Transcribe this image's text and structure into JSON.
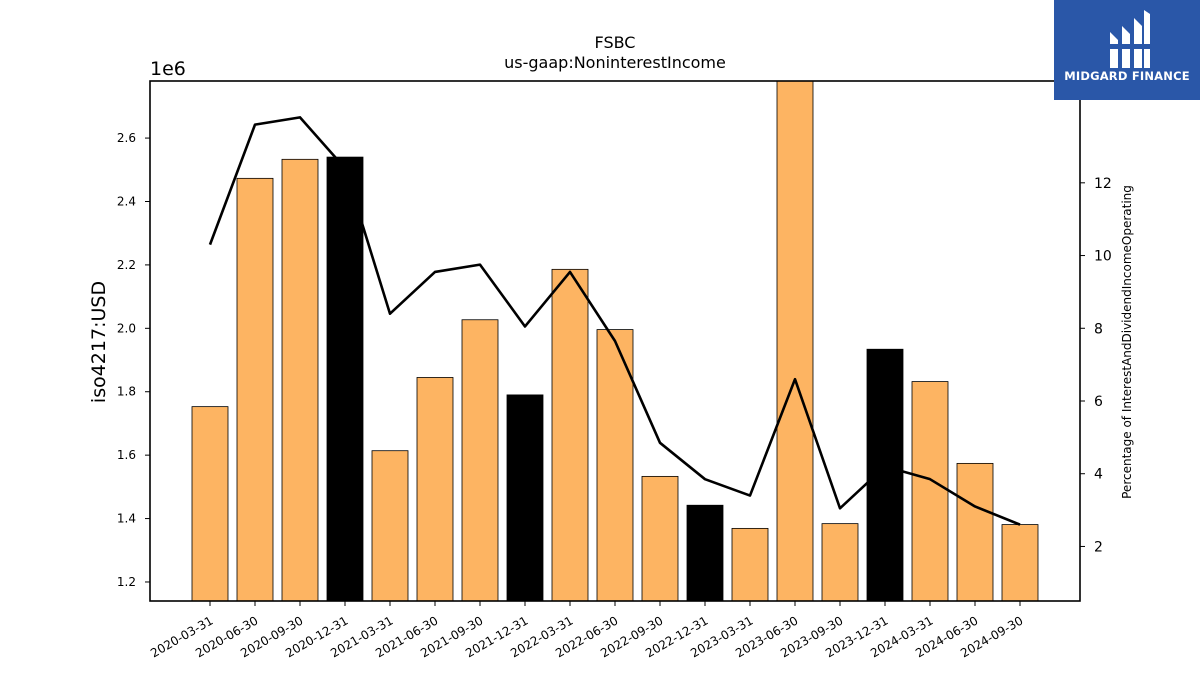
{
  "chart_data": {
    "type": "bar",
    "title": "FSBC",
    "subtitle": "us-gaap:NoninterestIncome",
    "ylabel": "iso4217:USD",
    "y_offset_label": "1e6",
    "y2label": "Percentage of InterestAndDividendIncomeOperating",
    "categories": [
      "2020-03-31",
      "2020-06-30",
      "2020-09-30",
      "2020-12-31",
      "2021-03-31",
      "2021-06-30",
      "2021-09-30",
      "2021-12-31",
      "2022-03-31",
      "2022-06-30",
      "2022-09-30",
      "2022-12-31",
      "2023-03-31",
      "2023-06-30",
      "2023-09-30",
      "2023-12-31",
      "2024-03-31",
      "2024-06-30",
      "2024-09-30"
    ],
    "series": [
      {
        "values": [
          1753000,
          2473000,
          2533000,
          2540000,
          1614000,
          1845000,
          2027000,
          1790000,
          2186000,
          1996000,
          1533000,
          1442000,
          1369000,
          2780000,
          1384000,
          1934000,
          1832000,
          1574000,
          1381000
        ],
        "colors": [
          "#fdb462",
          "#fdb462",
          "#fdb462",
          "#000000",
          "#fdb462",
          "#fdb462",
          "#fdb462",
          "#000000",
          "#fdb462",
          "#fdb462",
          "#fdb462",
          "#000000",
          "#fdb462",
          "#fdb462",
          "#fdb462",
          "#000000",
          "#fdb462",
          "#fdb462",
          "#fdb462"
        ]
      },
      {
        "axis": "right",
        "type": "line",
        "color": "#000000",
        "values": [
          10.3,
          13.6,
          13.8,
          12.4,
          8.4,
          9.55,
          9.75,
          8.05,
          9.55,
          7.65,
          4.85,
          3.85,
          3.4,
          6.6,
          3.05,
          4.2,
          3.85,
          3.1,
          2.6
        ]
      }
    ],
    "ylim": [
      1140000,
      2780000
    ],
    "y_ticks": [
      1.2,
      1.4,
      1.6,
      1.8,
      2.0,
      2.2,
      2.4,
      2.6
    ],
    "y2lim": [
      0.5,
      14.8
    ],
    "y2_ticks": [
      2,
      4,
      6,
      8,
      10,
      12
    ],
    "grid": false,
    "logo": {
      "text": "MIDGARD FINANCE",
      "background": "#2a57a8"
    }
  }
}
